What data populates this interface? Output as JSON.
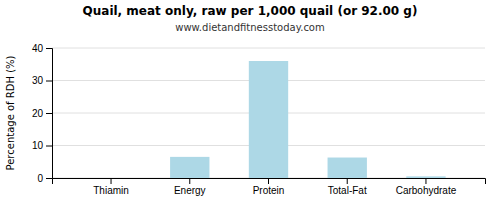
{
  "chart_data": {
    "type": "bar",
    "title": "Quail, meat only, raw per 1,000 quail (or 92.00 g)",
    "subtitle": "www.dietandfitnesstoday.com",
    "categories": [
      "Thiamin",
      "Energy",
      "Protein",
      "Total-Fat",
      "Carbohydrate"
    ],
    "values": [
      0.0,
      6.5,
      36.0,
      6.3,
      0.5
    ],
    "color": "#add8e6",
    "ylabel": "Percentage of RDH (%)",
    "ylim": [
      0,
      40
    ],
    "yticks": [
      0,
      10,
      20,
      30,
      40
    ],
    "grid": true
  }
}
